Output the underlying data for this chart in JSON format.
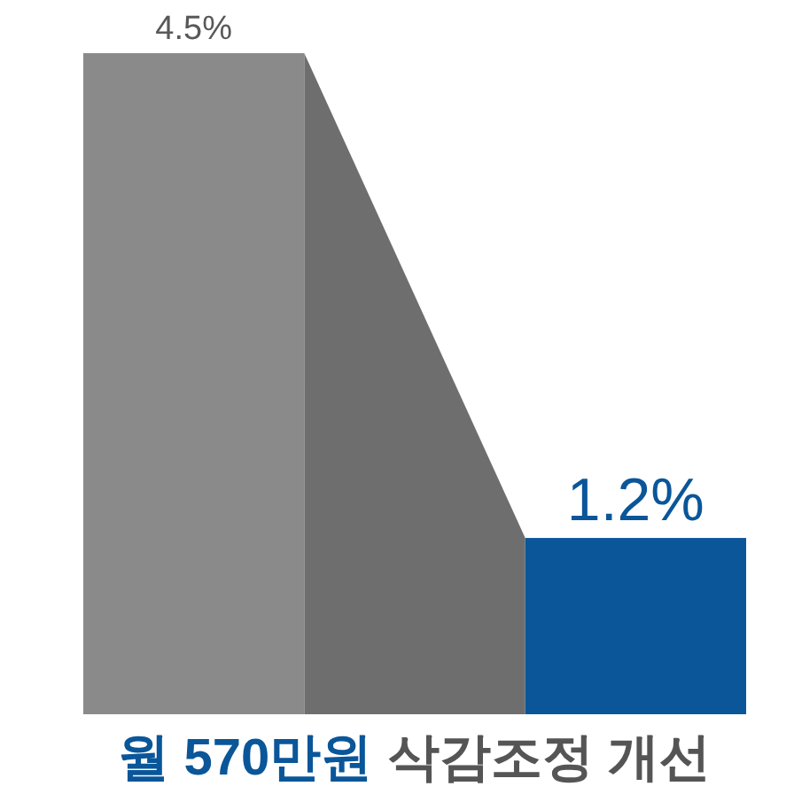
{
  "chart_data": {
    "type": "bar",
    "categories": [
      null,
      null
    ],
    "values": [
      4.5,
      1.2
    ],
    "colors": [
      "#8a8a8a",
      "#0a5699"
    ],
    "value_labels": [
      "4.5%",
      "1.2%"
    ],
    "annotations": [
      "월 570만원",
      "삭감조정 개선"
    ]
  }
}
